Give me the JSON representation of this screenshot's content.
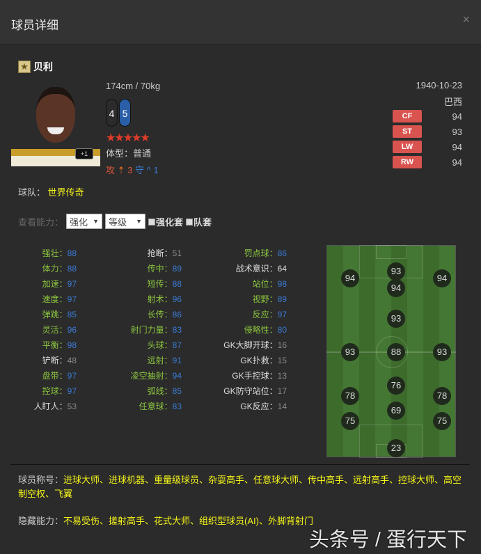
{
  "window": {
    "title": "球员详细",
    "close": "×"
  },
  "player": {
    "name": "贝利",
    "height_weight": "174cm / 70kg",
    "foot_left": "4",
    "foot_right": "5",
    "stars": "★★★★★",
    "star_rating": 5,
    "body_label": "体型：",
    "body": "普通",
    "atk_label": "攻",
    "atk_value": "3",
    "def_label": "守",
    "def_value": "1",
    "badge": "+1",
    "birth": "1940-10-23",
    "nation": "巴西",
    "positions": [
      {
        "pos": "CF",
        "val": "94"
      },
      {
        "pos": "ST",
        "val": "93"
      },
      {
        "pos": "LW",
        "val": "94"
      },
      {
        "pos": "RW",
        "val": "94"
      }
    ],
    "team_label": "球队：",
    "team": "世界传奇"
  },
  "view": {
    "label": "查看能力：",
    "select1": "强化",
    "select2": "等级",
    "check1": "强化套",
    "check2": "队套"
  },
  "attributes": [
    [
      {
        "l": "强壮",
        "v": "88",
        "c": "g"
      },
      {
        "l": "体力",
        "v": "88",
        "c": "g"
      },
      {
        "l": "加速",
        "v": "97",
        "c": "g"
      },
      {
        "l": "速度",
        "v": "97",
        "c": "g"
      },
      {
        "l": "弹跳",
        "v": "85",
        "c": "g"
      },
      {
        "l": "灵活",
        "v": "96",
        "c": "g"
      },
      {
        "l": "平衡",
        "v": "98",
        "c": "g"
      },
      {
        "l": "铲断",
        "v": "48",
        "c": "w"
      },
      {
        "l": "盘带",
        "v": "97",
        "c": "g"
      },
      {
        "l": "控球",
        "v": "97",
        "c": "g"
      },
      {
        "l": "人盯人",
        "v": "53",
        "c": "w"
      }
    ],
    [
      {
        "l": "抢断",
        "v": "51",
        "c": "w"
      },
      {
        "l": "传中",
        "v": "89",
        "c": "g"
      },
      {
        "l": "短传",
        "v": "88",
        "c": "g"
      },
      {
        "l": "射术",
        "v": "96",
        "c": "g"
      },
      {
        "l": "长传",
        "v": "86",
        "c": "g"
      },
      {
        "l": "射门力量",
        "v": "83",
        "c": "g"
      },
      {
        "l": "头球",
        "v": "87",
        "c": "g"
      },
      {
        "l": "远射",
        "v": "91",
        "c": "g"
      },
      {
        "l": "凌空抽射",
        "v": "94",
        "c": "g"
      },
      {
        "l": "弧线",
        "v": "85",
        "c": "g"
      },
      {
        "l": "任意球",
        "v": "83",
        "c": "g"
      }
    ],
    [
      {
        "l": "罚点球",
        "v": "86",
        "c": "g"
      },
      {
        "l": "战术意识",
        "v": "64",
        "c": "w"
      },
      {
        "l": "站位",
        "v": "98",
        "c": "g"
      },
      {
        "l": "视野",
        "v": "89",
        "c": "g"
      },
      {
        "l": "反应",
        "v": "97",
        "c": "g"
      },
      {
        "l": "侵略性",
        "v": "80",
        "c": "g"
      },
      {
        "l": "GK大脚开球",
        "v": "16",
        "c": "w"
      },
      {
        "l": "GK扑救",
        "v": "15",
        "c": "w"
      },
      {
        "l": "GK手控球",
        "v": "13",
        "c": "w"
      },
      {
        "l": "GK防守站位",
        "v": "17",
        "c": "w"
      },
      {
        "l": "GK反应",
        "v": "14",
        "c": "w"
      }
    ]
  ],
  "pitch_ratings": [
    "94",
    "93",
    "94",
    "94",
    "93",
    "93",
    "88",
    "93",
    "76",
    "78",
    "78",
    "69",
    "75",
    "75",
    "23"
  ],
  "titles": {
    "label": "球员称号：",
    "value": "进球大师、进球机器、重量级球员、杂耍高手、任意球大师、传中高手、远射高手、控球大师、高空制空权、飞翼"
  },
  "hidden": {
    "label": "隐藏能力：",
    "value": "不易受伤、搓射高手、花式大师、组织型球员(AI)、外脚背射门"
  },
  "watermark": "头条号 / 蛋行天下",
  "colors": {
    "green": "#8cc63f",
    "blue": "#3a7bd5",
    "yellow": "#f5f51a",
    "pos_tag": "#d9534f",
    "star": "#e03a2a"
  }
}
